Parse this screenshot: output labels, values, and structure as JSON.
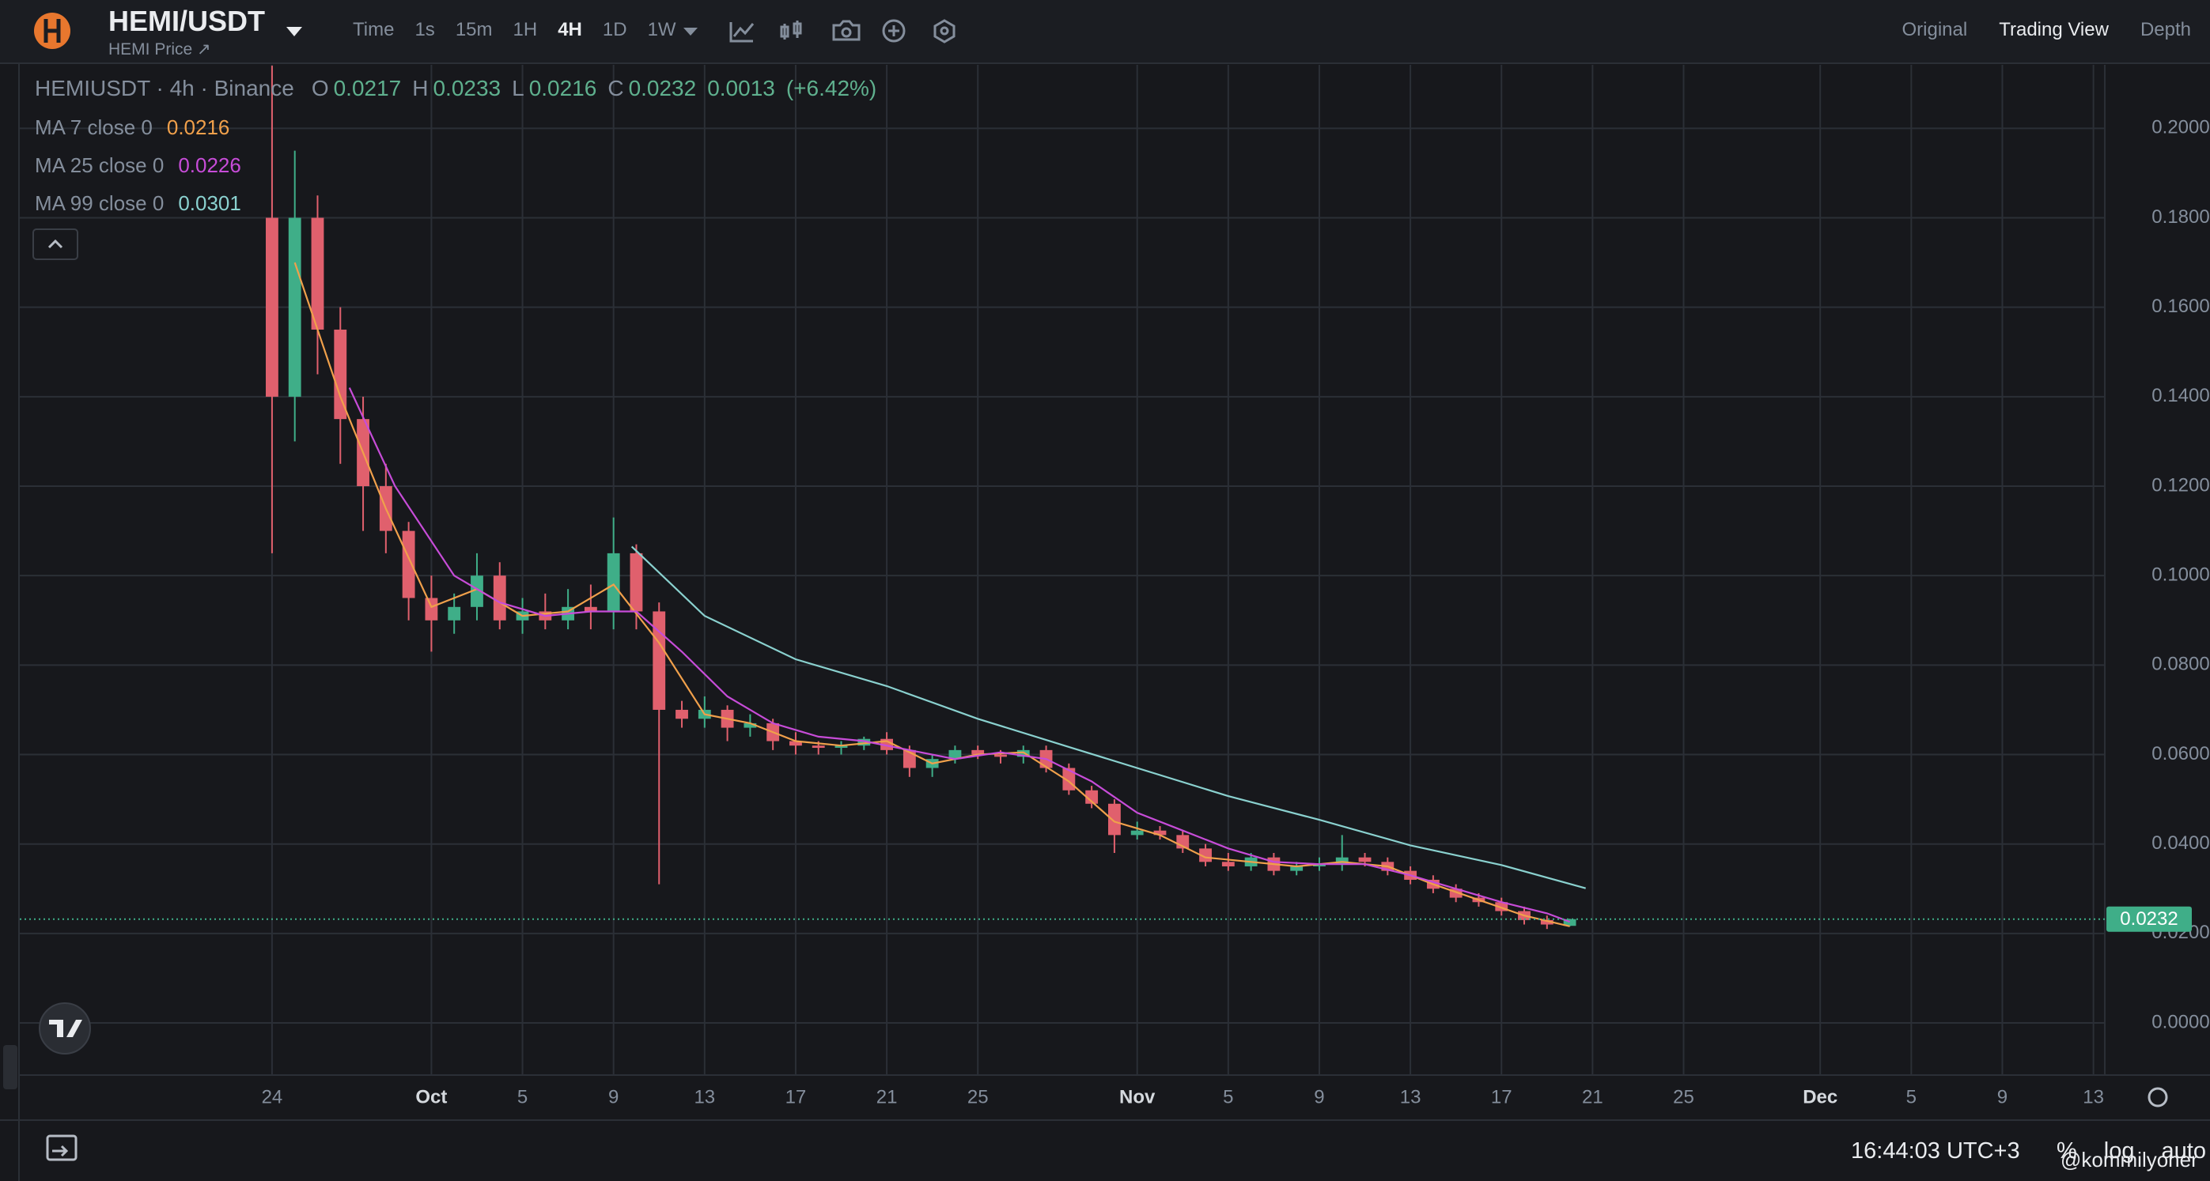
{
  "header": {
    "pair": "HEMI/USDT",
    "subtitle": "HEMI Price",
    "intervals": [
      "Time",
      "1s",
      "15m",
      "1H",
      "4H",
      "1D",
      "1W"
    ],
    "views": [
      "Original",
      "Trading View",
      "Depth"
    ]
  },
  "legend": {
    "symbol": "HEMIUSDT · 4h · Binance",
    "ohlc_labels": [
      "O",
      "H",
      "L",
      "C"
    ],
    "ohlc": [
      0.0217,
      0.0233,
      0.0216,
      0.0232
    ],
    "change": 0.0013,
    "change_pct": "(+6.42%)"
  },
  "chart_data": {
    "type": "candlestick",
    "x": [
      0,
      1,
      2,
      3,
      4,
      5,
      6,
      7,
      8,
      9,
      10,
      11,
      12,
      13,
      14,
      15,
      16,
      17,
      18,
      19,
      20,
      21,
      22,
      23,
      24,
      25,
      26,
      27,
      28,
      29,
      30,
      31,
      32,
      33,
      34,
      35,
      36,
      37,
      38,
      39,
      40,
      41,
      42,
      43,
      44,
      45,
      46,
      47,
      48,
      49,
      50,
      51,
      52,
      53,
      54,
      55,
      56,
      57
    ],
    "open": [
      0.18,
      0.14,
      0.18,
      0.155,
      0.135,
      0.12,
      0.11,
      0.095,
      0.09,
      0.093,
      0.1,
      0.09,
      0.092,
      0.09,
      0.093,
      0.092,
      0.105,
      0.092,
      0.07,
      0.068,
      0.07,
      0.066,
      0.067,
      0.063,
      0.062,
      0.0615,
      0.062,
      0.0635,
      0.061,
      0.057,
      0.059,
      0.061,
      0.06,
      0.0595,
      0.061,
      0.057,
      0.052,
      0.049,
      0.042,
      0.043,
      0.042,
      0.039,
      0.036,
      0.035,
      0.037,
      0.034,
      0.035,
      0.0355,
      0.037,
      0.036,
      0.034,
      0.032,
      0.03,
      0.028,
      0.027,
      0.025,
      0.023,
      0.0217
    ],
    "high": [
      0.214,
      0.195,
      0.185,
      0.16,
      0.14,
      0.125,
      0.112,
      0.1,
      0.096,
      0.105,
      0.103,
      0.095,
      0.096,
      0.097,
      0.098,
      0.113,
      0.107,
      0.094,
      0.072,
      0.073,
      0.071,
      0.069,
      0.068,
      0.065,
      0.063,
      0.063,
      0.064,
      0.065,
      0.062,
      0.06,
      0.062,
      0.062,
      0.061,
      0.062,
      0.062,
      0.058,
      0.053,
      0.05,
      0.045,
      0.044,
      0.043,
      0.04,
      0.038,
      0.038,
      0.038,
      0.036,
      0.037,
      0.042,
      0.038,
      0.037,
      0.035,
      0.033,
      0.031,
      0.029,
      0.028,
      0.026,
      0.024,
      0.0233
    ],
    "low": [
      0.105,
      0.13,
      0.145,
      0.125,
      0.11,
      0.105,
      0.09,
      0.083,
      0.087,
      0.09,
      0.088,
      0.087,
      0.088,
      0.088,
      0.088,
      0.088,
      0.088,
      0.031,
      0.066,
      0.066,
      0.063,
      0.064,
      0.061,
      0.06,
      0.06,
      0.06,
      0.061,
      0.06,
      0.055,
      0.055,
      0.058,
      0.059,
      0.058,
      0.058,
      0.056,
      0.051,
      0.048,
      0.038,
      0.041,
      0.041,
      0.038,
      0.035,
      0.034,
      0.034,
      0.033,
      0.033,
      0.034,
      0.034,
      0.035,
      0.033,
      0.031,
      0.029,
      0.027,
      0.026,
      0.024,
      0.022,
      0.021,
      0.0216
    ],
    "close": [
      0.14,
      0.18,
      0.155,
      0.135,
      0.12,
      0.11,
      0.095,
      0.09,
      0.093,
      0.1,
      0.09,
      0.092,
      0.09,
      0.093,
      0.092,
      0.105,
      0.092,
      0.07,
      0.068,
      0.07,
      0.066,
      0.067,
      0.063,
      0.062,
      0.0615,
      0.062,
      0.0635,
      0.061,
      0.057,
      0.059,
      0.061,
      0.06,
      0.0595,
      0.061,
      0.057,
      0.052,
      0.049,
      0.042,
      0.043,
      0.042,
      0.039,
      0.036,
      0.035,
      0.037,
      0.034,
      0.035,
      0.0355,
      0.037,
      0.036,
      0.034,
      0.032,
      0.03,
      0.028,
      0.027,
      0.025,
      0.023,
      0.022,
      0.0232
    ],
    "up_color": "#3fae88",
    "down_color": "#e0606d",
    "series": [
      {
        "name": "MA 7 close 0",
        "color": "#f0a04b",
        "x": [
          1,
          3,
          5,
          7,
          9,
          11,
          13,
          15,
          17,
          19,
          21,
          23,
          25,
          27,
          29,
          31,
          33,
          35,
          37,
          39,
          41,
          43,
          45,
          47,
          49,
          51,
          53,
          55,
          57
        ],
        "values": [
          0.17,
          0.14,
          0.115,
          0.093,
          0.097,
          0.091,
          0.092,
          0.098,
          0.085,
          0.069,
          0.067,
          0.063,
          0.062,
          0.063,
          0.058,
          0.06,
          0.0605,
          0.054,
          0.045,
          0.042,
          0.037,
          0.036,
          0.035,
          0.036,
          0.035,
          0.031,
          0.0275,
          0.024,
          0.0216
        ]
      },
      {
        "name": "MA 25 close 0",
        "color": "#c74cd8",
        "x": [
          3.4,
          5.4,
          8,
          10,
          12,
          14,
          16,
          18,
          20,
          22,
          24,
          26,
          28,
          30,
          32,
          34,
          36,
          38,
          40,
          42,
          44,
          46,
          48,
          50,
          52,
          54,
          56,
          57
        ],
        "values": [
          0.142,
          0.12,
          0.1,
          0.094,
          0.091,
          0.092,
          0.092,
          0.083,
          0.073,
          0.067,
          0.064,
          0.063,
          0.061,
          0.059,
          0.0605,
          0.059,
          0.054,
          0.047,
          0.043,
          0.039,
          0.036,
          0.0355,
          0.0355,
          0.033,
          0.03,
          0.027,
          0.0245,
          0.0226
        ]
      },
      {
        "name": "MA 99 close 0",
        "color": "#8ad1cf",
        "x": [
          15.8,
          19,
          23,
          27,
          31,
          35,
          42,
          46,
          50,
          54,
          57.7
        ],
        "values": [
          0.1065,
          0.091,
          0.0813,
          0.0753,
          0.068,
          0.0617,
          0.0507,
          0.0454,
          0.0397,
          0.0353,
          0.0301
        ]
      }
    ],
    "last_price": 0.0232,
    "xlim": [
      -11.08,
      80.5
    ],
    "ylim": [
      -0.01166,
      0.2142
    ],
    "xticks": [
      {
        "value": 0,
        "label": "24"
      },
      {
        "value": 7,
        "label": "Oct"
      },
      {
        "value": 11,
        "label": "5"
      },
      {
        "value": 15,
        "label": "9"
      },
      {
        "value": 19,
        "label": "13"
      },
      {
        "value": 23,
        "label": "17"
      },
      {
        "value": 27,
        "label": "21"
      },
      {
        "value": 31,
        "label": "25"
      },
      {
        "value": 38,
        "label": "Nov"
      },
      {
        "value": 42,
        "label": "5"
      },
      {
        "value": 46,
        "label": "9"
      },
      {
        "value": 50,
        "label": "13"
      },
      {
        "value": 54,
        "label": "17"
      },
      {
        "value": 58,
        "label": "21"
      },
      {
        "value": 62,
        "label": "25"
      },
      {
        "value": 68,
        "label": "Dec"
      },
      {
        "value": 72,
        "label": "5"
      },
      {
        "value": 76,
        "label": "9"
      },
      {
        "value": 80,
        "label": "13"
      }
    ],
    "yticks": [
      {
        "value": 0,
        "label": "0.0000"
      },
      {
        "value": 0.02,
        "label": "0.0200"
      },
      {
        "value": 0.04,
        "label": "0.0400"
      },
      {
        "value": 0.06,
        "label": "0.0600"
      },
      {
        "value": 0.08,
        "label": "0.0800"
      },
      {
        "value": 0.1,
        "label": "0.1000"
      },
      {
        "value": 0.12,
        "label": "0.1200"
      },
      {
        "value": 0.14,
        "label": "0.1400"
      },
      {
        "value": 0.16,
        "label": "0.1600"
      },
      {
        "value": 0.18,
        "label": "0.1800"
      },
      {
        "value": 0.2,
        "label": "0.2000"
      }
    ],
    "grid": true
  },
  "footer": {
    "time": "16:44:03 UTC+3",
    "options": [
      "%",
      "log",
      "auto"
    ],
    "watermark": "@kommilyoner"
  }
}
